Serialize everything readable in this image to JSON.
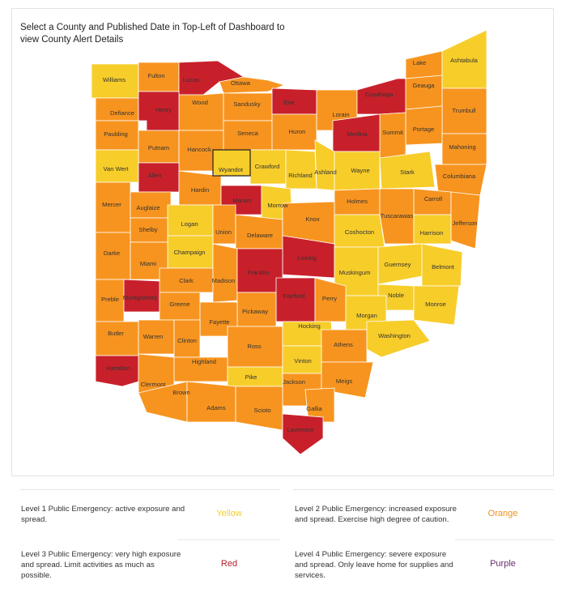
{
  "instructions": "Select a County and Published Date in Top-Left of Dashboard to view County Alert Details",
  "colors": {
    "yellow": "#f7cd2a",
    "orange": "#f7941f",
    "red": "#c8202b",
    "border": "#ffffff",
    "selected_outline": "#222222"
  },
  "counties": [
    {
      "name": "Williams",
      "level": "yellow"
    },
    {
      "name": "Fulton",
      "level": "orange"
    },
    {
      "name": "Lucas",
      "level": "red"
    },
    {
      "name": "Ottawa",
      "level": "orange"
    },
    {
      "name": "Wood",
      "level": "orange"
    },
    {
      "name": "Sandusky",
      "level": "orange"
    },
    {
      "name": "Erie",
      "level": "red"
    },
    {
      "name": "Defiance",
      "level": "orange"
    },
    {
      "name": "Henry",
      "level": "red"
    },
    {
      "name": "Paulding",
      "level": "orange"
    },
    {
      "name": "Putnam",
      "level": "orange"
    },
    {
      "name": "Hancock",
      "level": "orange"
    },
    {
      "name": "Seneca",
      "level": "orange"
    },
    {
      "name": "Huron",
      "level": "orange"
    },
    {
      "name": "Lorain",
      "level": "orange"
    },
    {
      "name": "Cuyahoga",
      "level": "red"
    },
    {
      "name": "Lake",
      "level": "orange"
    },
    {
      "name": "Geauga",
      "level": "orange"
    },
    {
      "name": "Ashtabula",
      "level": "yellow"
    },
    {
      "name": "Trumbull",
      "level": "orange"
    },
    {
      "name": "Portage",
      "level": "orange"
    },
    {
      "name": "Summit",
      "level": "orange"
    },
    {
      "name": "Medina",
      "level": "red"
    },
    {
      "name": "Mahoning",
      "level": "orange"
    },
    {
      "name": "Van Wert",
      "level": "yellow"
    },
    {
      "name": "Allen",
      "level": "red"
    },
    {
      "name": "Wyandot",
      "level": "yellow"
    },
    {
      "name": "Crawford",
      "level": "yellow"
    },
    {
      "name": "Richland",
      "level": "yellow"
    },
    {
      "name": "Ashland",
      "level": "yellow"
    },
    {
      "name": "Wayne",
      "level": "yellow"
    },
    {
      "name": "Stark",
      "level": "yellow"
    },
    {
      "name": "Columbiana",
      "level": "orange"
    },
    {
      "name": "Mercer",
      "level": "orange"
    },
    {
      "name": "Auglaize",
      "level": "orange"
    },
    {
      "name": "Hardin",
      "level": "orange"
    },
    {
      "name": "Marion",
      "level": "red"
    },
    {
      "name": "Morrow",
      "level": "yellow"
    },
    {
      "name": "Holmes",
      "level": "orange"
    },
    {
      "name": "Carroll",
      "level": "orange"
    },
    {
      "name": "Tuscarawas",
      "level": "orange"
    },
    {
      "name": "Jefferson",
      "level": "orange"
    },
    {
      "name": "Logan",
      "level": "yellow"
    },
    {
      "name": "Shelby",
      "level": "orange"
    },
    {
      "name": "Union",
      "level": "orange"
    },
    {
      "name": "Delaware",
      "level": "orange"
    },
    {
      "name": "Knox",
      "level": "orange"
    },
    {
      "name": "Coshocton",
      "level": "yellow"
    },
    {
      "name": "Harrison",
      "level": "yellow"
    },
    {
      "name": "Darke",
      "level": "orange"
    },
    {
      "name": "Champaign",
      "level": "yellow"
    },
    {
      "name": "Miami",
      "level": "orange"
    },
    {
      "name": "Licking",
      "level": "red"
    },
    {
      "name": "Muskingum",
      "level": "yellow"
    },
    {
      "name": "Guernsey",
      "level": "yellow"
    },
    {
      "name": "Belmont",
      "level": "yellow"
    },
    {
      "name": "Clark",
      "level": "orange"
    },
    {
      "name": "Madison",
      "level": "orange"
    },
    {
      "name": "Franklin",
      "level": "red"
    },
    {
      "name": "Preble",
      "level": "orange"
    },
    {
      "name": "Montgomery",
      "level": "red"
    },
    {
      "name": "Greene",
      "level": "orange"
    },
    {
      "name": "Fairfield",
      "level": "red"
    },
    {
      "name": "Perry",
      "level": "orange"
    },
    {
      "name": "Noble",
      "level": "yellow"
    },
    {
      "name": "Monroe",
      "level": "yellow"
    },
    {
      "name": "Morgan",
      "level": "yellow"
    },
    {
      "name": "Pickaway",
      "level": "orange"
    },
    {
      "name": "Fayette",
      "level": "orange"
    },
    {
      "name": "Butler",
      "level": "orange"
    },
    {
      "name": "Warren",
      "level": "orange"
    },
    {
      "name": "Clinton",
      "level": "orange"
    },
    {
      "name": "Ross",
      "level": "orange"
    },
    {
      "name": "Hocking",
      "level": "yellow"
    },
    {
      "name": "Washington",
      "level": "yellow"
    },
    {
      "name": "Athens",
      "level": "orange"
    },
    {
      "name": "Hamilton",
      "level": "red"
    },
    {
      "name": "Clermont",
      "level": "orange"
    },
    {
      "name": "Highland",
      "level": "orange"
    },
    {
      "name": "Pike",
      "level": "yellow"
    },
    {
      "name": "Vinton",
      "level": "yellow"
    },
    {
      "name": "Jackson",
      "level": "orange"
    },
    {
      "name": "Meigs",
      "level": "orange"
    },
    {
      "name": "Brown",
      "level": "orange"
    },
    {
      "name": "Adams",
      "level": "orange"
    },
    {
      "name": "Scioto",
      "level": "orange"
    },
    {
      "name": "Gallia",
      "level": "orange"
    },
    {
      "name": "Lawrence",
      "level": "red"
    }
  ],
  "legend": [
    {
      "desc": "Level 1 Public Emergency: active exposure and spread.",
      "level_label": "Yellow",
      "color": "#f7cd2a"
    },
    {
      "desc": "Level 2 Public Emergency: increased exposure and spread. Exercise high degree of caution.",
      "level_label": "Orange",
      "color": "#f0901c"
    },
    {
      "desc": "Level 3 Public Emergency: very high exposure and spread. Limit activities as much as possible.",
      "level_label": "Red",
      "color": "#b52027"
    },
    {
      "desc": "Level 4 Public Emergency: severe exposure and spread. Only leave home for supplies and services.",
      "level_label": "Purple",
      "color": "#6a2c6e"
    }
  ]
}
